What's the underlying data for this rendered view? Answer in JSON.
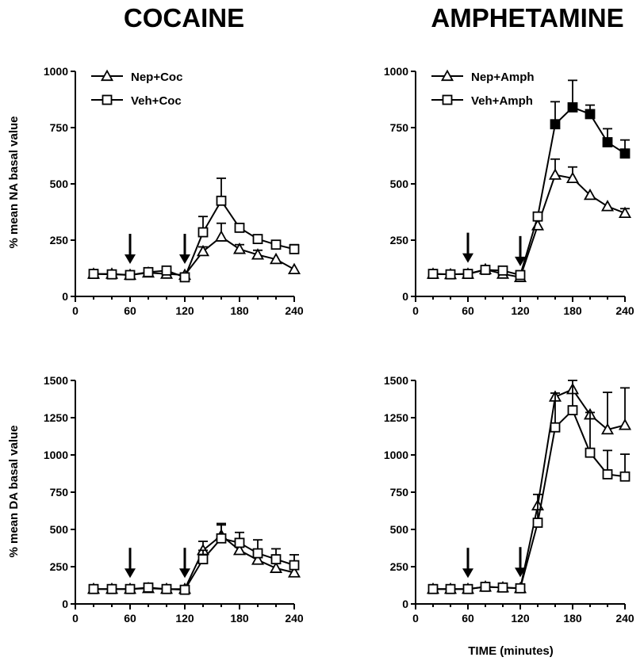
{
  "figure": {
    "titles": [
      "COCAINE",
      "AMPHETAMINE"
    ],
    "ylabels": [
      "% mean NA basal value",
      "% mean DA basal value"
    ],
    "xlabel": "TIME (minutes)"
  },
  "chart_data": [
    {
      "type": "line",
      "panel": "top-left",
      "title": "COCAINE",
      "ylabel": "% mean NA basal value",
      "xlabel": "",
      "xlim": [
        0,
        240
      ],
      "ylim": [
        0,
        1000
      ],
      "xticks": [
        0,
        60,
        120,
        180,
        240
      ],
      "yticks": [
        0,
        250,
        500,
        750,
        1000
      ],
      "arrows_at": [
        60,
        120
      ],
      "legend": "top-left",
      "x": [
        20,
        40,
        60,
        80,
        100,
        120,
        140,
        160,
        180,
        200,
        220,
        240
      ],
      "series": [
        {
          "name": "Nep+Coc",
          "marker": "triangle",
          "values": [
            100,
            100,
            95,
            105,
            100,
            95,
            200,
            265,
            210,
            185,
            165,
            120
          ],
          "err": [
            0,
            0,
            0,
            0,
            0,
            0,
            20,
            60,
            20,
            20,
            0,
            0
          ]
        },
        {
          "name": "Veh+Coc",
          "marker": "square",
          "values": [
            100,
            98,
            95,
            108,
            115,
            85,
            285,
            425,
            305,
            255,
            230,
            210
          ],
          "err": [
            0,
            0,
            0,
            0,
            0,
            0,
            70,
            100,
            0,
            0,
            0,
            20
          ]
        }
      ]
    },
    {
      "type": "line",
      "panel": "top-right",
      "title": "AMPHETAMINE",
      "ylabel": "",
      "xlabel": "",
      "xlim": [
        0,
        240
      ],
      "ylim": [
        0,
        1000
      ],
      "xticks": [
        0,
        60,
        120,
        180,
        240
      ],
      "yticks": [
        0,
        250,
        500,
        750,
        1000
      ],
      "arrows_at": [
        60,
        120
      ],
      "legend": "top-left",
      "x": [
        20,
        40,
        60,
        80,
        100,
        120,
        140,
        160,
        180,
        200,
        220,
        240
      ],
      "series": [
        {
          "name": "Nep+Amph",
          "marker": "triangle",
          "values": [
            100,
            98,
            100,
            120,
            100,
            85,
            315,
            540,
            525,
            450,
            400,
            370
          ],
          "err": [
            0,
            0,
            0,
            0,
            0,
            0,
            0,
            70,
            50,
            0,
            0,
            20
          ]
        },
        {
          "name": "Veh+Amph",
          "marker": "square",
          "values": [
            100,
            98,
            100,
            118,
            115,
            95,
            355,
            765,
            840,
            810,
            685,
            635
          ],
          "err": [
            0,
            0,
            0,
            0,
            0,
            0,
            0,
            100,
            120,
            40,
            60,
            60
          ],
          "filled_from": 160
        }
      ]
    },
    {
      "type": "line",
      "panel": "bottom-left",
      "title": "",
      "ylabel": "% mean DA basal value",
      "xlabel": "",
      "xlim": [
        0,
        240
      ],
      "ylim": [
        0,
        1500
      ],
      "xticks": [
        0,
        60,
        120,
        180,
        240
      ],
      "yticks": [
        0,
        250,
        500,
        750,
        1000,
        1250,
        1500
      ],
      "arrows_at": [
        60,
        120
      ],
      "x": [
        20,
        40,
        60,
        80,
        100,
        120,
        140,
        160,
        180,
        200,
        220,
        240
      ],
      "series": [
        {
          "name": "Nep+Coc",
          "marker": "triangle",
          "values": [
            100,
            100,
            100,
            105,
            100,
            100,
            360,
            460,
            360,
            295,
            240,
            210
          ],
          "err": [
            0,
            0,
            0,
            0,
            0,
            0,
            60,
            80,
            50,
            50,
            0,
            0
          ]
        },
        {
          "name": "Veh+Coc",
          "marker": "square",
          "values": [
            100,
            100,
            100,
            110,
            100,
            95,
            300,
            440,
            410,
            340,
            300,
            260
          ],
          "err": [
            0,
            0,
            0,
            0,
            0,
            0,
            60,
            90,
            70,
            90,
            70,
            70
          ]
        }
      ]
    },
    {
      "type": "line",
      "panel": "bottom-right",
      "title": "",
      "ylabel": "",
      "xlabel": "TIME (minutes)",
      "xlim": [
        0,
        240
      ],
      "ylim": [
        0,
        1500
      ],
      "xticks": [
        0,
        60,
        120,
        180,
        240
      ],
      "yticks": [
        0,
        250,
        500,
        750,
        1000,
        1250,
        1500
      ],
      "arrows_at": [
        60,
        120
      ],
      "x": [
        20,
        40,
        60,
        80,
        100,
        120,
        140,
        160,
        180,
        200,
        220,
        240
      ],
      "series": [
        {
          "name": "Nep+Amph",
          "marker": "triangle",
          "values": [
            100,
            100,
            100,
            115,
            110,
            105,
            660,
            1390,
            1440,
            1270,
            1170,
            1200
          ],
          "err": [
            0,
            0,
            0,
            0,
            0,
            0,
            0,
            0,
            0,
            0,
            250,
            250
          ]
        },
        {
          "name": "Veh+Amph",
          "marker": "square",
          "values": [
            100,
            100,
            100,
            115,
            110,
            105,
            545,
            1185,
            1300,
            1015,
            870,
            855
          ],
          "err": [
            0,
            0,
            0,
            0,
            0,
            0,
            190,
            230,
            200,
            270,
            160,
            150
          ]
        }
      ]
    }
  ]
}
